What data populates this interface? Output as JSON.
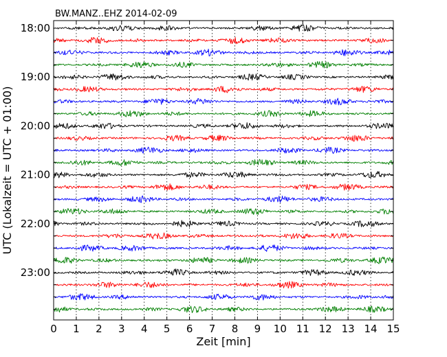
{
  "chart_data": {
    "type": "line",
    "title": "BW.MANZ..EHZ 2014-02-09",
    "xlabel": "Zeit  [min]",
    "ylabel": "UTC (Lokalzeit = UTC + 01:00)",
    "xlim": [
      0,
      15
    ],
    "x_ticks": [
      "0",
      "1",
      "2",
      "3",
      "4",
      "5",
      "6",
      "7",
      "8",
      "9",
      "10",
      "11",
      "12",
      "13",
      "14",
      "15"
    ],
    "y_tick_labels": [
      "18:00",
      "19:00",
      "20:00",
      "21:00",
      "22:00",
      "23:00"
    ],
    "grid": "vertical dotted at each minute",
    "trace_interval_minutes": 15,
    "start_time": "18:00",
    "trace_count": 24,
    "series_colors": [
      "#000000",
      "#ff0000",
      "#0000ff",
      "#007f00"
    ]
  }
}
